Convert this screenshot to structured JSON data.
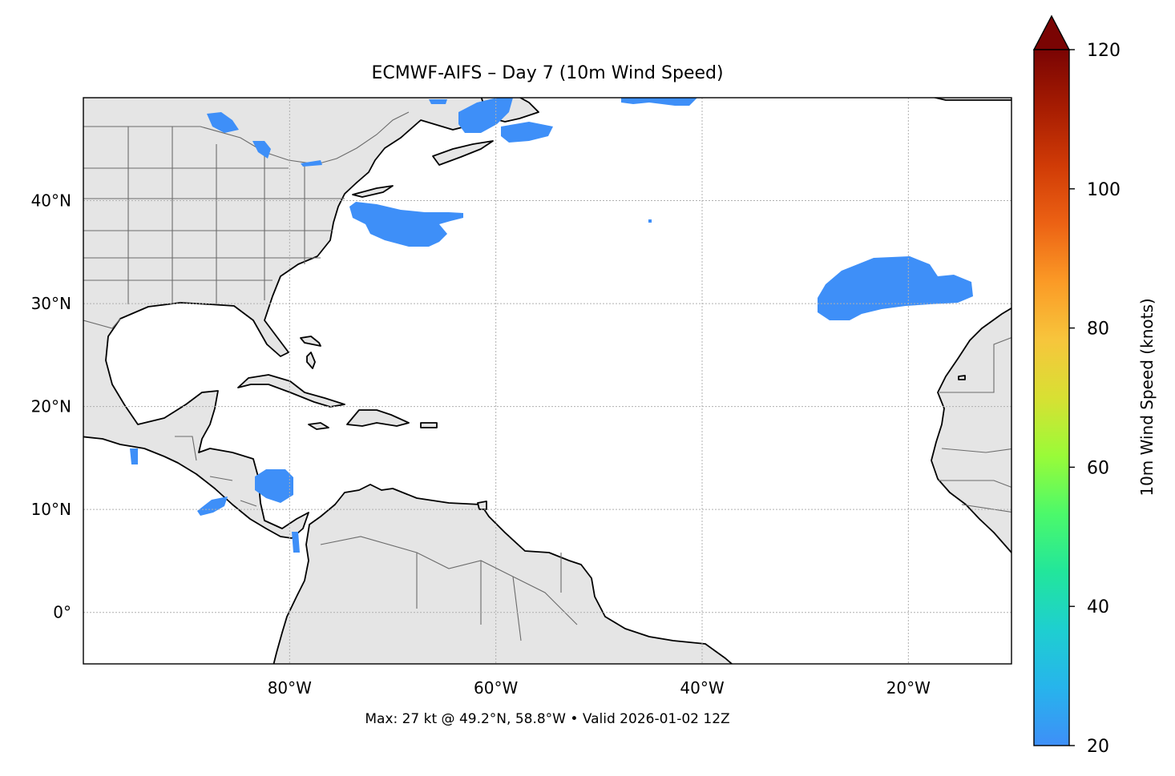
{
  "figure": {
    "title": "ECMWF-AIFS – Day 7 (10m Wind Speed)",
    "footer": "Max: 27 kt @ 49.2°N, 58.8°W • Valid 2026-01-02 12Z"
  },
  "map": {
    "projection": "PlateCarree",
    "lon_range": [
      -100,
      -10
    ],
    "lat_range": [
      -5,
      50
    ],
    "lon_ticks": [
      {
        "value": -80,
        "label": "80°W"
      },
      {
        "value": -60,
        "label": "60°W"
      },
      {
        "value": -40,
        "label": "40°W"
      },
      {
        "value": -20,
        "label": "20°W"
      }
    ],
    "lat_ticks": [
      {
        "value": 0,
        "label": "0°"
      },
      {
        "value": 10,
        "label": "10°N"
      },
      {
        "value": 20,
        "label": "20°N"
      },
      {
        "value": 30,
        "label": "30°N"
      },
      {
        "value": 40,
        "label": "40°N"
      }
    ],
    "grid": true,
    "land_color": "#e5e5e5",
    "ocean_color": "#ffffff",
    "wind_color": "#3e8ff8",
    "max_point": {
      "lat": 49.2,
      "lon": -58.8,
      "value_kt": 27
    }
  },
  "colorbar": {
    "label": "10m Wind Speed (knots)",
    "range": [
      20,
      120
    ],
    "extend": "max",
    "cmap": "turbo",
    "ticks": [
      {
        "value": 20,
        "label": "20"
      },
      {
        "value": 40,
        "label": "40"
      },
      {
        "value": 60,
        "label": "60"
      },
      {
        "value": 80,
        "label": "80"
      },
      {
        "value": 100,
        "label": "100"
      },
      {
        "value": 120,
        "label": "120"
      }
    ],
    "stops": [
      "#3e8ff8",
      "#27b4ec",
      "#1ecfd0",
      "#22e69b",
      "#4cf96a",
      "#9afb38",
      "#d8e033",
      "#f7c53c",
      "#fb9a26",
      "#ec6214",
      "#d03b06",
      "#a61c02",
      "#7a0403"
    ]
  }
}
